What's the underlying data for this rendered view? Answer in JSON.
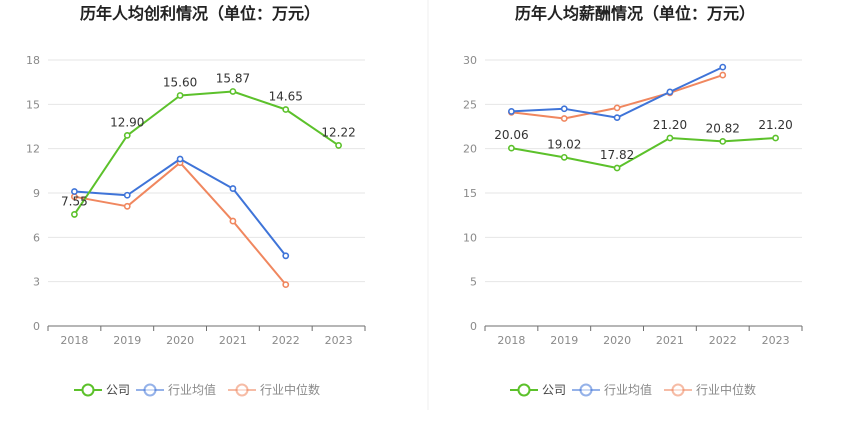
{
  "colors": {
    "company": "#5cc12b",
    "industry_avg": "#3f74d8",
    "industry_median": "#f0875f",
    "grid": "#e6e6e6",
    "axis": "#6e6e6e",
    "tick_text": "#8a8a8a",
    "label_text": "#333333",
    "title_text": "#222222"
  },
  "legend": {
    "company": "公司",
    "industry_avg": "行业均值",
    "industry_median": "行业中位数"
  },
  "chart_data": [
    {
      "type": "line",
      "title": "历年人均创利情况（单位：万元）",
      "categories": [
        "2018",
        "2019",
        "2020",
        "2021",
        "2022",
        "2023"
      ],
      "ylim": [
        0,
        18
      ],
      "yticks": [
        0,
        3,
        6,
        9,
        12,
        15,
        18
      ],
      "grid": true,
      "legend_position": "bottom",
      "series": [
        {
          "name": "公司",
          "key": "company",
          "values": [
            7.55,
            12.9,
            15.6,
            15.87,
            14.65,
            12.22
          ],
          "labels": [
            "7.55",
            "12.90",
            "15.60",
            "15.87",
            "14.65",
            "12.22"
          ]
        },
        {
          "name": "行业均值",
          "key": "industry_avg",
          "values": [
            9.1,
            8.85,
            11.3,
            9.3,
            4.75,
            null
          ]
        },
        {
          "name": "行业中位数",
          "key": "industry_median",
          "values": [
            8.75,
            8.1,
            11.05,
            7.1,
            2.8,
            null
          ]
        }
      ]
    },
    {
      "type": "line",
      "title": "历年人均薪酬情况（单位：万元）",
      "categories": [
        "2018",
        "2019",
        "2020",
        "2021",
        "2022",
        "2023"
      ],
      "ylim": [
        0,
        30
      ],
      "yticks": [
        0,
        5,
        10,
        15,
        20,
        25,
        30
      ],
      "grid": true,
      "legend_position": "bottom",
      "series": [
        {
          "name": "公司",
          "key": "company",
          "values": [
            20.06,
            19.02,
            17.82,
            21.2,
            20.82,
            21.2
          ],
          "labels": [
            "20.06",
            "19.02",
            "17.82",
            "21.20",
            "20.82",
            "21.20"
          ]
        },
        {
          "name": "行业均值",
          "key": "industry_avg",
          "values": [
            24.2,
            24.5,
            23.5,
            26.4,
            29.2,
            null
          ]
        },
        {
          "name": "行业中位数",
          "key": "industry_median",
          "values": [
            24.1,
            23.4,
            24.6,
            26.3,
            28.3,
            null
          ]
        }
      ]
    }
  ]
}
